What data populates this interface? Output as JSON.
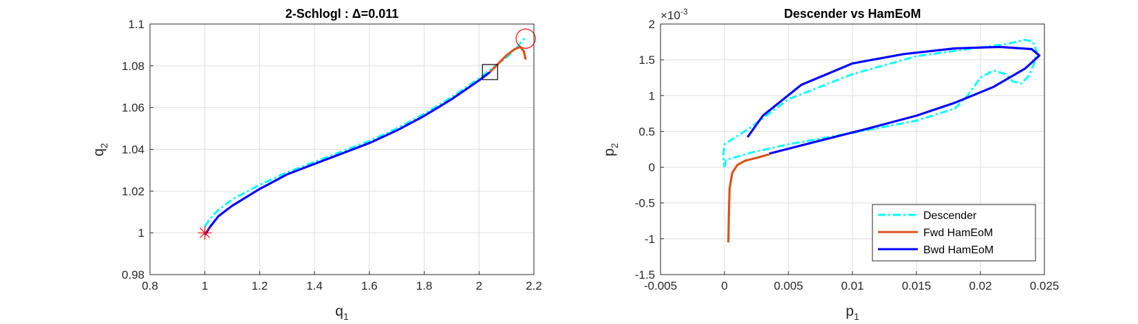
{
  "chart_data": [
    {
      "type": "line",
      "title": "2-Schlogl : Δ=0.011",
      "xlabel": "q",
      "xlabel_sub": "1",
      "ylabel": "q",
      "ylabel_sub": "2",
      "xlim": [
        0.8,
        2.2
      ],
      "ylim": [
        0.98,
        1.1
      ],
      "xticks": [
        "0.8",
        "1",
        "1.2",
        "1.4",
        "1.6",
        "1.8",
        "2",
        "2.2"
      ],
      "yticks": [
        "0.98",
        "1",
        "1.02",
        "1.04",
        "1.06",
        "1.08",
        "1.1"
      ],
      "grid": true,
      "series": [
        {
          "name": "Descender",
          "color": "#00FFFF",
          "style": "dashdot",
          "x": [
            1.0,
            1.02,
            1.05,
            1.1,
            1.2,
            1.3,
            1.4,
            1.5,
            1.6,
            1.7,
            1.8,
            1.9,
            2.0,
            2.05,
            2.1,
            2.14,
            2.17
          ],
          "y": [
            1.003,
            1.007,
            1.011,
            1.016,
            1.023,
            1.029,
            1.034,
            1.039,
            1.044,
            1.05,
            1.057,
            1.065,
            1.074,
            1.079,
            1.084,
            1.089,
            1.094
          ]
        },
        {
          "name": "Fwd HamEoM",
          "color": "#D95319",
          "style": "solid",
          "x": [
            2.04,
            2.07,
            2.1,
            2.13,
            2.15,
            2.163,
            2.17
          ],
          "y": [
            1.077,
            1.081,
            1.085,
            1.088,
            1.089,
            1.087,
            1.083
          ]
        },
        {
          "name": "Bwd HamEoM",
          "color": "#0000FF",
          "style": "solid",
          "x": [
            1.0,
            1.02,
            1.05,
            1.1,
            1.2,
            1.3,
            1.4,
            1.5,
            1.6,
            1.7,
            1.8,
            1.9,
            2.0,
            2.04
          ],
          "y": [
            0.999,
            1.003,
            1.008,
            1.013,
            1.021,
            1.028,
            1.033,
            1.038,
            1.043,
            1.049,
            1.056,
            1.064,
            1.073,
            1.077
          ]
        }
      ],
      "markers": [
        {
          "type": "asterisk",
          "x": 1.0,
          "y": 1.0,
          "color": "#FF0000"
        },
        {
          "type": "square",
          "x": 2.04,
          "y": 1.077,
          "color": "#000000"
        },
        {
          "type": "circle",
          "x": 2.17,
          "y": 1.093,
          "color": "#FF0000"
        }
      ]
    },
    {
      "type": "line",
      "title": "Descender vs HamEoM",
      "xlabel": "p",
      "xlabel_sub": "1",
      "ylabel": "p",
      "ylabel_sub": "2",
      "y_exponent_base": "×10",
      "y_exponent": "-3",
      "xlim": [
        -0.005,
        0.025
      ],
      "ylim": [
        -1.5,
        2
      ],
      "xticks": [
        "-0.005",
        "0",
        "0.005",
        "0.01",
        "0.015",
        "0.02",
        "0.025"
      ],
      "yticks": [
        "-1.5",
        "-1",
        "-0.5",
        "0",
        "0.5",
        "1",
        "1.5",
        "2"
      ],
      "grid": true,
      "legend_position": "bottom-right",
      "legend": [
        "Descender",
        "Fwd HamEoM",
        "Bwd HamEoM"
      ],
      "series": [
        {
          "name": "Descender",
          "color": "#00FFFF",
          "style": "dashdot",
          "x": [
            0.0,
            0.0001,
            0.002,
            0.005,
            0.01,
            0.015,
            0.018,
            0.019,
            0.02,
            0.021,
            0.022,
            0.0225,
            0.0232,
            0.0238,
            0.0242,
            0.0244,
            0.0241,
            0.0235,
            0.022,
            0.019,
            0.015,
            0.01,
            0.005,
            0.002,
            0.0,
            -0.0001,
            0.0
          ],
          "y": [
            0.0,
            0.1,
            0.2,
            0.32,
            0.48,
            0.65,
            0.82,
            1.0,
            1.25,
            1.35,
            1.3,
            1.2,
            1.17,
            1.28,
            1.45,
            1.62,
            1.75,
            1.78,
            1.72,
            1.65,
            1.55,
            1.3,
            0.95,
            0.55,
            0.32,
            0.15,
            0.0
          ]
        },
        {
          "name": "Fwd HamEoM",
          "color": "#D95319",
          "style": "solid",
          "x": [
            0.0003,
            0.00035,
            0.0004,
            0.0006,
            0.001,
            0.0016,
            0.0025,
            0.0035
          ],
          "y": [
            -1.05,
            -0.6,
            -0.3,
            -0.08,
            0.03,
            0.09,
            0.13,
            0.18
          ]
        },
        {
          "name": "Bwd HamEoM",
          "color": "#0000FF",
          "style": "solid",
          "x": [
            0.0035,
            0.007,
            0.011,
            0.015,
            0.018,
            0.021,
            0.0235,
            0.0246,
            0.024,
            0.0215,
            0.018,
            0.014,
            0.01,
            0.006,
            0.003,
            0.0018
          ],
          "y": [
            0.19,
            0.35,
            0.53,
            0.72,
            0.9,
            1.12,
            1.38,
            1.56,
            1.65,
            1.68,
            1.66,
            1.58,
            1.45,
            1.15,
            0.72,
            0.42
          ]
        }
      ]
    }
  ]
}
